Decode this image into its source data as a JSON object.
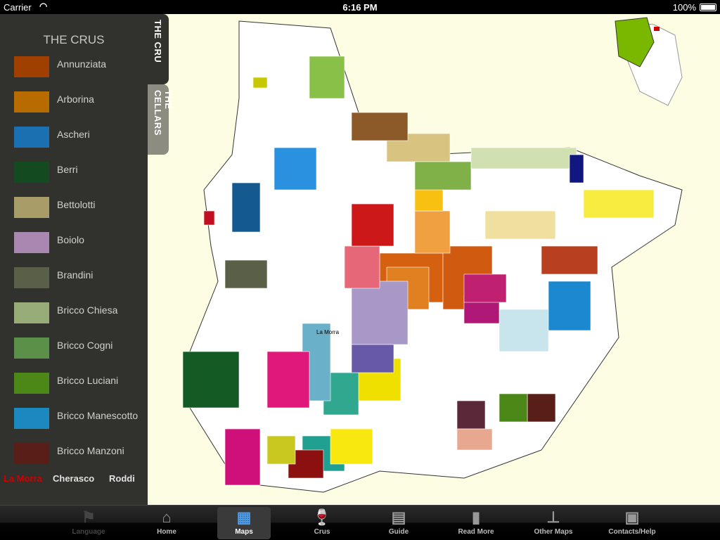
{
  "status": {
    "carrier": "Carrier",
    "time": "6:16 PM",
    "battery": "100%"
  },
  "panel": {
    "title": "THE CRUS",
    "items": [
      {
        "label": "Annunziata",
        "color": "#a04000"
      },
      {
        "label": "Arborina",
        "color": "#b86c00"
      },
      {
        "label": "Ascheri",
        "color": "#1a70b0"
      },
      {
        "label": "Berri",
        "color": "#134a20"
      },
      {
        "label": "Bettolotti",
        "color": "#a89c68"
      },
      {
        "label": "Boiolo",
        "color": "#a888b0"
      },
      {
        "label": "Brandini",
        "color": "#5a6048"
      },
      {
        "label": "Bricco Chiesa",
        "color": "#98ac78"
      },
      {
        "label": "Bricco Cogni",
        "color": "#5a9048"
      },
      {
        "label": "Bricco Luciani",
        "color": "#4c8818"
      },
      {
        "label": "Bricco Manescotto",
        "color": "#1c88c0"
      },
      {
        "label": "Bricco Manzoni",
        "color": "#5a1e18"
      }
    ],
    "towns": [
      {
        "label": "La Morra",
        "color": "#d00000"
      },
      {
        "label": "Cherasco",
        "color": "#e0e0e0"
      },
      {
        "label": "Roddi",
        "color": "#e0e0e0"
      }
    ]
  },
  "tabs": [
    {
      "label": "THE CRU",
      "active": true
    },
    {
      "label": "THE CELLARS",
      "active": false
    }
  ],
  "map": {
    "town_label": "La Morra"
  },
  "tabbar": [
    {
      "label": "Language",
      "icon": "flag-icon"
    },
    {
      "label": "Home",
      "icon": "home-icon"
    },
    {
      "label": "Maps",
      "icon": "map-icon"
    },
    {
      "label": "Crus",
      "icon": "wine-glass-icon"
    },
    {
      "label": "Guide",
      "icon": "calculator-icon"
    },
    {
      "label": "Read More",
      "icon": "book-icon"
    },
    {
      "label": "Other Maps",
      "icon": "signpost-icon"
    },
    {
      "label": "Contacts/Help",
      "icon": "contact-card-icon"
    }
  ]
}
